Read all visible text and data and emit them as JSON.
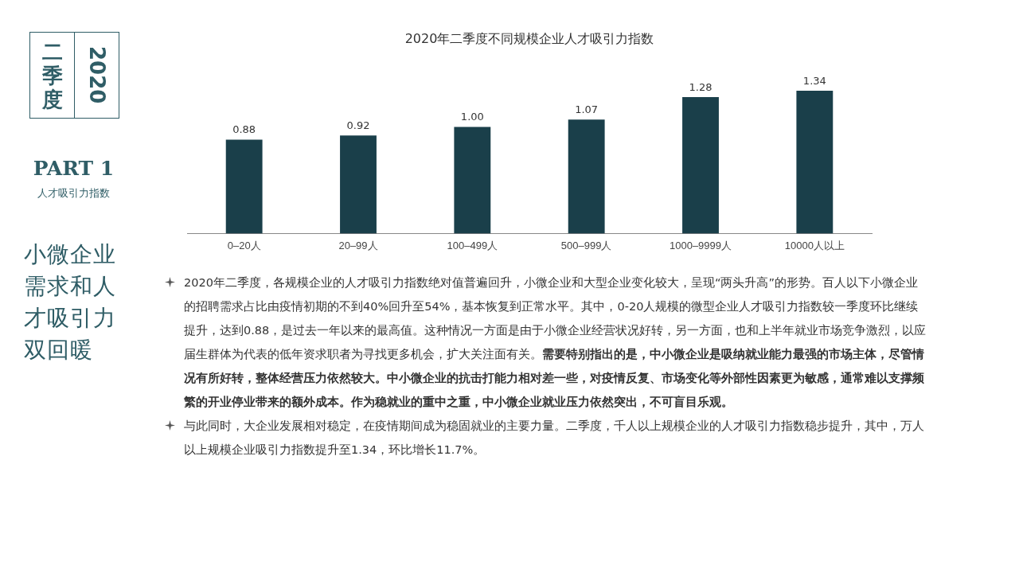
{
  "chart_data": {
    "type": "bar",
    "title": "2020年二季度不同规模企业人才吸引力指数",
    "categories": [
      "0–20人",
      "20–99人",
      "100–499人",
      "500–999人",
      "1000–9999人",
      "10000人以上"
    ],
    "values": [
      0.88,
      0.92,
      1.0,
      1.07,
      1.28,
      1.34
    ],
    "color": "#1a3f4a",
    "value_labels": [
      "0.88",
      "0.92",
      "1.00",
      "1.07",
      "1.28",
      "1.34"
    ],
    "grid": false,
    "legend": false,
    "annotations": [
      "二季度",
      "2020",
      "PART 1",
      "人才吸引力指数",
      "小微企业需求和人才吸引力双回暖",
      "2020年二季度，各规模企业的人才吸引力指数绝对值普遍回升，小微企业和大型企业变化较大，呈现“两头升高”的形势。百人以下小微企业的招聘需求占比由疫情初期的不到40%回升至54%，基本恢复到正常水平。其中，0-20人规模的微型企业人才吸引力指数较一季度环比继续提升，达到0.88，是过去一年以来的最高值。这种情况一方面是由于小微企业经营状况好转，另一方面，也和上半年就业市场竞争激烈，以应届生群体为代表的低年资求职者为寻找更多机会，扩大关注面有关。",
      "需要特别指出的是，中小微企业是吸纳就业能力最强的市场主体，尽管情况有所好转，整体经营压力依然较大。中小微企业的抗击打能力相对差一些，对疫情反复、市场变化等外部性因素更为敏感，通常难以支撑频繁的开业停业带来的额外成本。作为稳就业的重中之重，中小微企业就业压力依然突出，不可盲目乐观。",
      "与此同时，大企业发展相对稳定，在疫情期间成为稳固就业的主要力量。二季度，千人以上规模企业的人才吸引力指数稳步提升，其中，万人以上规模企业吸引力指数提升至1.34，环比增长11.7%。"
    ]
  }
}
